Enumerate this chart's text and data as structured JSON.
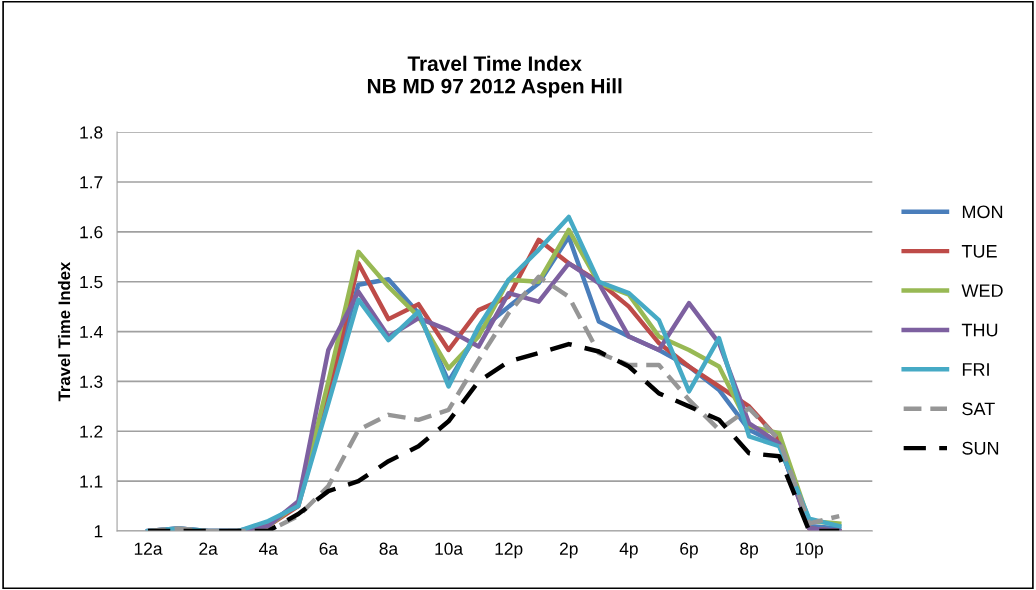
{
  "chart_data": {
    "type": "line",
    "title": "Travel Time Index\nNB MD 97 2012 Aspen Hill",
    "ylabel": "Travel Time Index",
    "categories": [
      "12a",
      null,
      "2a",
      null,
      "4a",
      null,
      "6a",
      null,
      "8a",
      null,
      "10a",
      null,
      "12p",
      null,
      "2p",
      null,
      "4p",
      null,
      "6p",
      null,
      "8p",
      null,
      "10p",
      null
    ],
    "series": [
      {
        "name": "MON",
        "color": "#4a7ebb",
        "line_style": "solid",
        "values": [
          1.0,
          1.005,
          1.0,
          1.0,
          1.015,
          1.055,
          1.28,
          1.494,
          1.505,
          1.437,
          1.3,
          1.4,
          1.45,
          1.497,
          1.59,
          1.42,
          1.39,
          1.363,
          1.33,
          1.283,
          1.203,
          1.173,
          1.01,
          1.005
        ]
      },
      {
        "name": "TUE",
        "color": "#be4b48",
        "line_style": "solid",
        "values": [
          null,
          null,
          null,
          1.0,
          1.01,
          1.05,
          1.27,
          1.537,
          1.425,
          1.455,
          1.363,
          1.443,
          1.47,
          1.584,
          1.537,
          1.5,
          1.45,
          1.377,
          1.33,
          1.29,
          1.25,
          1.183,
          1.005,
          1.0
        ]
      },
      {
        "name": "WED",
        "color": "#98b954",
        "line_style": "solid",
        "values": [
          null,
          null,
          null,
          1.0,
          1.01,
          1.055,
          1.3,
          1.56,
          1.49,
          1.43,
          1.326,
          1.39,
          1.504,
          1.5,
          1.604,
          1.497,
          1.474,
          1.39,
          1.363,
          1.33,
          1.21,
          1.196,
          1.02,
          1.015
        ]
      },
      {
        "name": "THU",
        "color": "#7d60a0",
        "line_style": "solid",
        "values": [
          1.0,
          1.005,
          1.0,
          1.0,
          1.01,
          1.06,
          1.363,
          1.48,
          1.39,
          1.427,
          1.403,
          1.37,
          1.477,
          1.46,
          1.537,
          1.497,
          1.39,
          1.363,
          1.457,
          1.377,
          1.216,
          1.176,
          1.005,
          1.0
        ]
      },
      {
        "name": "FRI",
        "color": "#46aac5",
        "line_style": "solid",
        "values": [
          1.0,
          1.005,
          1.0,
          1.0,
          1.02,
          1.05,
          1.256,
          1.464,
          1.383,
          1.44,
          1.29,
          1.41,
          1.504,
          1.564,
          1.63,
          1.5,
          1.477,
          1.423,
          1.28,
          1.387,
          1.19,
          1.17,
          1.025,
          1.01
        ]
      },
      {
        "name": "SAT",
        "color": "#969696",
        "line_style": "dashed",
        "values": [
          1.0,
          1.005,
          1.0,
          1.0,
          1.0,
          1.03,
          1.09,
          1.203,
          1.233,
          1.223,
          1.243,
          1.343,
          1.437,
          1.51,
          1.47,
          1.357,
          1.333,
          1.333,
          1.263,
          1.203,
          1.246,
          1.183,
          1.015,
          1.03
        ]
      },
      {
        "name": "SUN",
        "color": "#000000",
        "line_style": "dashed",
        "values": [
          1.0,
          1.0,
          1.0,
          1.0,
          1.0,
          1.034,
          1.08,
          1.1,
          1.14,
          1.17,
          1.22,
          1.3,
          1.34,
          1.357,
          1.375,
          1.36,
          1.33,
          1.276,
          1.25,
          1.223,
          1.156,
          1.15,
          1.0,
          1.0
        ]
      }
    ],
    "ylim": [
      1,
      1.8
    ],
    "yticks": [
      1,
      1.1,
      1.2,
      1.3,
      1.4,
      1.5,
      1.6,
      1.7,
      1.8
    ],
    "grid": "y",
    "legend": "right",
    "marker": "none"
  }
}
